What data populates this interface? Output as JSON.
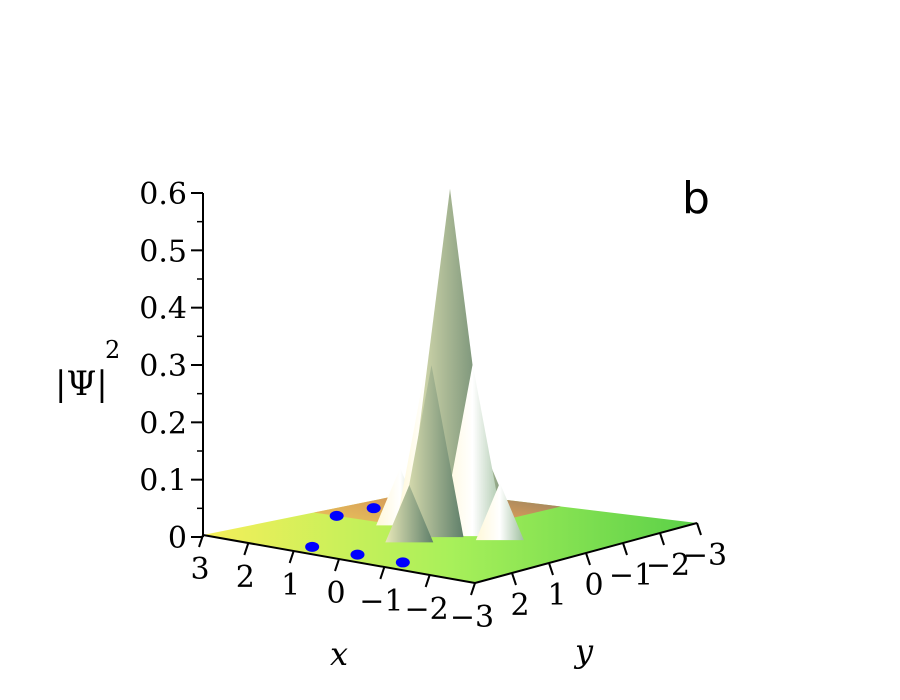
{
  "chart_data": {
    "type": "surface3d",
    "panel_label": "b",
    "zlabel_base": "|Ψ|",
    "zlabel_exp": "2",
    "xlabel": "x",
    "ylabel": "y",
    "zlim": [
      0,
      0.6
    ],
    "z_ticks": [
      "0",
      "0.1",
      "0.2",
      "0.3",
      "0.4",
      "0.5",
      "0.6"
    ],
    "x_ticks": [
      "3",
      "2",
      "1",
      "0",
      "−1",
      "−2",
      "−3"
    ],
    "y_ticks": [
      "2",
      "1",
      "0",
      "−1",
      "−2",
      "−3"
    ],
    "xlim": [
      -3,
      3
    ],
    "ylim": [
      -3,
      3
    ],
    "peaks": [
      {
        "x": 0.0,
        "y": 0.0,
        "z": 0.6
      },
      {
        "x": 0.5,
        "y": 0.0,
        "z": 0.3
      },
      {
        "x": -0.5,
        "y": 0.0,
        "z": 0.3
      },
      {
        "x": 0.0,
        "y": 0.5,
        "z": 0.3
      },
      {
        "x": 0.0,
        "y": -0.5,
        "z": 0.3
      },
      {
        "x": 1.1,
        "y": 0.0,
        "z": 0.1
      },
      {
        "x": -1.1,
        "y": 0.0,
        "z": 0.1
      },
      {
        "x": 0.0,
        "y": 1.1,
        "z": 0.1
      },
      {
        "x": 0.0,
        "y": -1.1,
        "z": 0.1
      }
    ],
    "markers": [
      {
        "x": 1.0,
        "y": 2.5
      },
      {
        "x": 0.0,
        "y": 2.5
      },
      {
        "x": -1.0,
        "y": 2.5
      },
      {
        "x": 2.5,
        "y": -1.0
      },
      {
        "x": 2.5,
        "y": 0.0
      }
    ],
    "colors": {
      "marker": "#0000ff"
    }
  }
}
